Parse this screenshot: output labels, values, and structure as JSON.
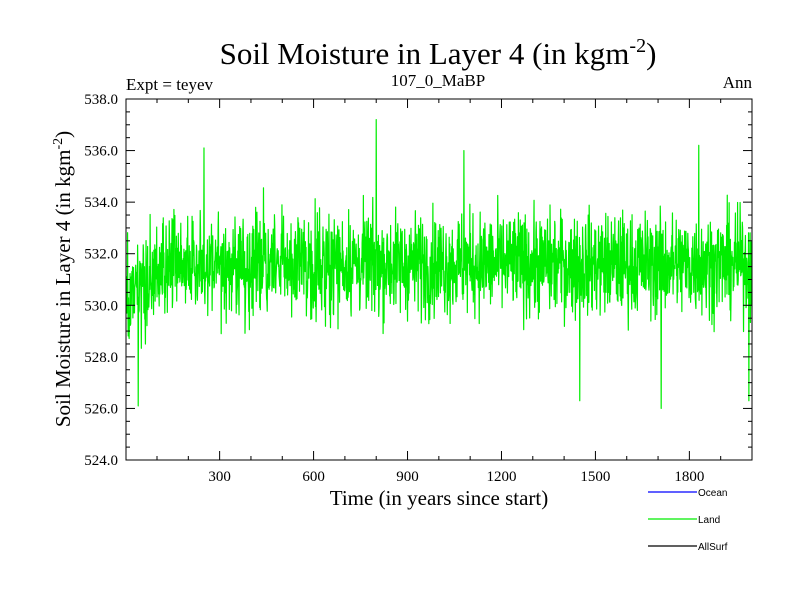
{
  "chart_data": {
    "type": "line",
    "title": "Soil Moisture in Layer 4 (in kgm",
    "title_sup": "-2",
    "title_close": ")",
    "subtitle_left": "Expt = teyev",
    "subtitle_center": "107_0_MaBP",
    "subtitle_right": "Ann",
    "xlabel": "Time (in years since start)",
    "ylabel": "Soil Moisture in Layer 4 (in kgm",
    "ylabel_sup": "-2",
    "ylabel_close": ")",
    "xlim": [
      1,
      2000
    ],
    "ylim": [
      524.0,
      538.0
    ],
    "xticks": [
      300,
      600,
      900,
      1200,
      1500,
      1800
    ],
    "xtick_labels": [
      "300",
      "600",
      "900",
      "1200",
      "1500",
      "1800"
    ],
    "yticks": [
      524,
      526,
      528,
      530,
      532,
      534,
      536,
      538
    ],
    "ytick_labels": [
      "524.0",
      "526.0",
      "528.0",
      "530.0",
      "532.0",
      "534.0",
      "536.0",
      "538.0"
    ],
    "grid": false,
    "legend_position": "bottom-right",
    "legend": [
      {
        "name": "Ocean",
        "color": "#0000ff"
      },
      {
        "name": "Land",
        "color": "#00ee00"
      },
      {
        "name": "AllSurf",
        "color": "#000000"
      }
    ],
    "series": [
      {
        "name": "Land",
        "color": "#00ee00",
        "n_points": 2000,
        "start_mean": 530.0,
        "mean": 531.6,
        "spread": 1.6,
        "min": 526.0,
        "max": 537.2,
        "notable_points": [
          {
            "x": 40,
            "y": 526.1
          },
          {
            "x": 250,
            "y": 536.1
          },
          {
            "x": 800,
            "y": 537.2
          },
          {
            "x": 1080,
            "y": 536.0
          },
          {
            "x": 1450,
            "y": 526.3
          },
          {
            "x": 1710,
            "y": 526.0
          },
          {
            "x": 1830,
            "y": 536.2
          },
          {
            "x": 1990,
            "y": 526.3
          }
        ]
      }
    ]
  }
}
